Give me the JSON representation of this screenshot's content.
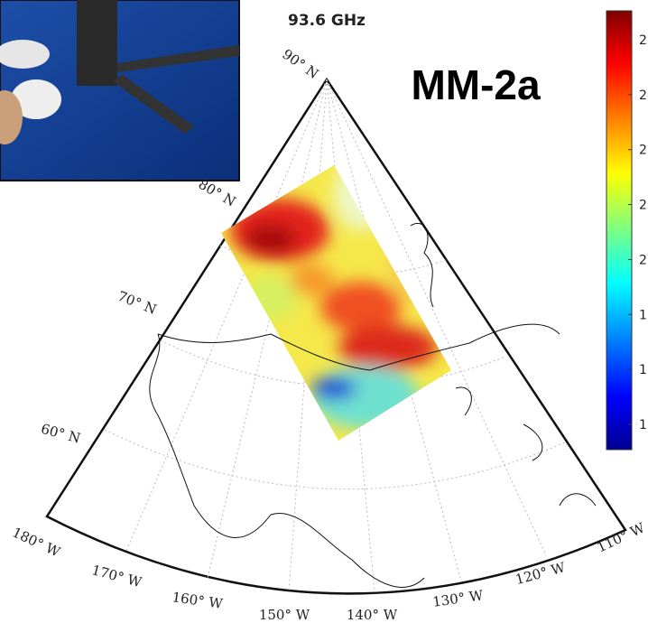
{
  "title": "93.6 GHz",
  "instrument_label": "MM-2a",
  "latitude_labels": [
    "90° N",
    "80° N",
    "70° N",
    "60° N"
  ],
  "longitude_labels": [
    "180° W",
    "170° W",
    "160° W",
    "150° W",
    "140° W",
    "130° W",
    "120° W",
    "110° W"
  ],
  "colorbar": {
    "tick_labels": [
      "2",
      "2",
      "2",
      "2",
      "2",
      "1",
      "1",
      "1"
    ]
  }
}
